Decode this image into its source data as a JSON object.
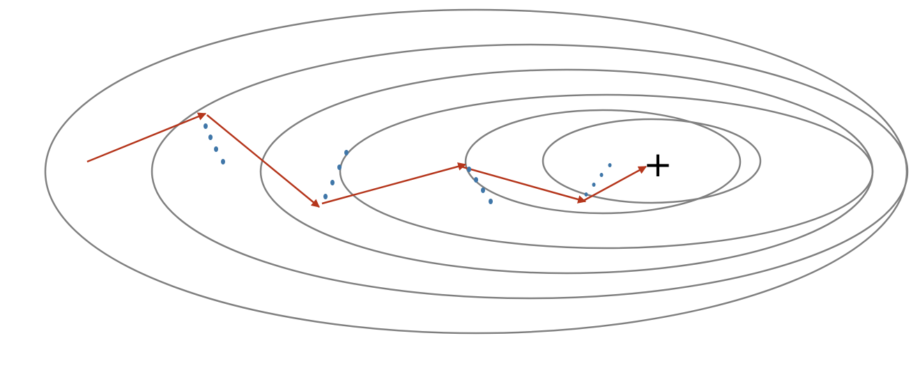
{
  "diagram": {
    "contour_color": "#808080",
    "path_color": "#b5361c",
    "dot_color": "#3f76a8",
    "optimum_color": "#000000",
    "contour_count": 6,
    "optimum_symbol": "+",
    "optimum_icon": "plus-icon"
  }
}
